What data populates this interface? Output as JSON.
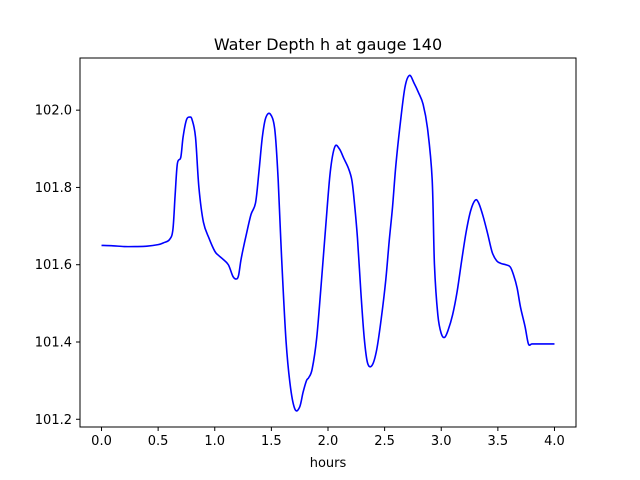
{
  "chart_data": {
    "type": "line",
    "title": "Water Depth h at gauge 140",
    "xlabel": "hours",
    "ylabel": "",
    "xlim": [
      -0.19,
      4.19
    ],
    "ylim": [
      101.18,
      102.135
    ],
    "xticks": [
      0.0,
      0.5,
      1.0,
      1.5,
      2.0,
      2.5,
      3.0,
      3.5,
      4.0
    ],
    "xtick_labels": [
      "0.0",
      "0.5",
      "1.0",
      "1.5",
      "2.0",
      "2.5",
      "3.0",
      "3.5",
      "4.0"
    ],
    "yticks": [
      101.2,
      101.4,
      101.6,
      101.8,
      102.0
    ],
    "ytick_labels": [
      "101.2",
      "101.4",
      "101.6",
      "101.8",
      "102.0"
    ],
    "grid": false,
    "series": [
      {
        "color": "#0000ff",
        "x": [
          0.0,
          0.1,
          0.2,
          0.3,
          0.4,
          0.5,
          0.55,
          0.6,
          0.63,
          0.65,
          0.67,
          0.7,
          0.72,
          0.75,
          0.78,
          0.8,
          0.83,
          0.86,
          0.9,
          0.95,
          1.0,
          1.03,
          1.07,
          1.12,
          1.16,
          1.19,
          1.21,
          1.23,
          1.25,
          1.28,
          1.32,
          1.36,
          1.39,
          1.42,
          1.45,
          1.49,
          1.53,
          1.56,
          1.59,
          1.63,
          1.67,
          1.71,
          1.75,
          1.78,
          1.81,
          1.83,
          1.86,
          1.9,
          1.94,
          1.98,
          2.02,
          2.06,
          2.1,
          2.14,
          2.18,
          2.21,
          2.23,
          2.26,
          2.29,
          2.32,
          2.35,
          2.39,
          2.43,
          2.47,
          2.51,
          2.54,
          2.57,
          2.6,
          2.64,
          2.68,
          2.72,
          2.76,
          2.8,
          2.84,
          2.88,
          2.92,
          2.94,
          2.97,
          3.0,
          3.03,
          3.06,
          3.1,
          3.14,
          3.18,
          3.22,
          3.26,
          3.3,
          3.33,
          3.37,
          3.41,
          3.45,
          3.49,
          3.53,
          3.57,
          3.61,
          3.64,
          3.67,
          3.7,
          3.74,
          3.77,
          3.8,
          3.84,
          3.88,
          3.92,
          3.96,
          4.0
        ],
        "values": [
          101.65,
          101.649,
          101.647,
          101.647,
          101.648,
          101.652,
          101.657,
          101.665,
          101.69,
          101.78,
          101.862,
          101.878,
          101.93,
          101.975,
          101.982,
          101.975,
          101.93,
          101.8,
          101.71,
          101.668,
          101.635,
          101.625,
          101.615,
          101.6,
          101.57,
          101.563,
          101.572,
          101.61,
          101.64,
          101.68,
          101.73,
          101.76,
          101.84,
          101.93,
          101.98,
          101.99,
          101.95,
          101.82,
          101.62,
          101.4,
          101.28,
          101.225,
          101.232,
          101.27,
          101.3,
          101.308,
          101.33,
          101.41,
          101.55,
          101.7,
          101.84,
          101.905,
          101.9,
          101.875,
          101.85,
          101.82,
          101.77,
          101.67,
          101.53,
          101.41,
          101.345,
          101.34,
          101.38,
          101.46,
          101.56,
          101.66,
          101.75,
          101.86,
          101.97,
          102.06,
          102.09,
          102.07,
          102.045,
          102.015,
          101.95,
          101.82,
          101.6,
          101.47,
          101.422,
          101.412,
          101.43,
          101.47,
          101.53,
          101.61,
          101.685,
          101.74,
          101.767,
          101.76,
          101.725,
          101.68,
          101.632,
          101.61,
          101.603,
          101.6,
          101.594,
          101.572,
          101.54,
          101.49,
          101.44,
          101.395,
          101.395,
          101.395,
          101.395,
          101.395,
          101.395,
          101.395
        ]
      }
    ]
  }
}
